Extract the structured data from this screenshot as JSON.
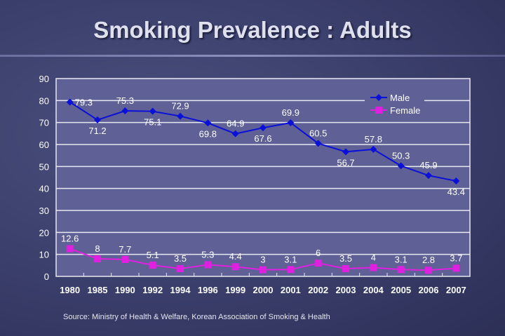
{
  "title": "Smoking Prevalence : Adults",
  "source": "Source: Ministry of Health & Welfare, Korean Association of Smoking & Health",
  "chart_data": {
    "type": "line",
    "title": "Smoking Prevalence : Adults",
    "categories": [
      "1980",
      "1985",
      "1990",
      "1992",
      "1994",
      "1996",
      "1999",
      "2000",
      "2001",
      "2002",
      "2003",
      "2004",
      "2005",
      "2006",
      "2007"
    ],
    "series": [
      {
        "name": "Male",
        "color": "#0a10d8",
        "marker": "diamond",
        "values": [
          79.3,
          71.2,
          75.3,
          75.1,
          72.9,
          69.8,
          64.9,
          67.6,
          69.9,
          60.5,
          56.7,
          57.8,
          50.3,
          45.9,
          43.4
        ],
        "label_pos": [
          "right",
          "below",
          "above",
          "below",
          "above",
          "below",
          "above",
          "below",
          "above",
          "above",
          "below",
          "above",
          "above",
          "above",
          "below"
        ]
      },
      {
        "name": "Female",
        "color": "#e020e0",
        "marker": "square",
        "values": [
          12.6,
          8,
          7.7,
          5.1,
          3.5,
          5.3,
          4.4,
          3,
          3.1,
          6,
          3.5,
          4,
          3.1,
          2.8,
          3.7
        ],
        "label_pos": [
          "above",
          "above",
          "above",
          "above",
          "above",
          "above",
          "above",
          "above",
          "above",
          "above",
          "above",
          "above",
          "above",
          "above",
          "above"
        ]
      }
    ],
    "ylim": [
      0,
      90
    ],
    "yticks": [
      0,
      10,
      20,
      30,
      40,
      50,
      60,
      70,
      80,
      90
    ],
    "grid": true,
    "legend": "top-right",
    "xlabel": "",
    "ylabel": ""
  }
}
